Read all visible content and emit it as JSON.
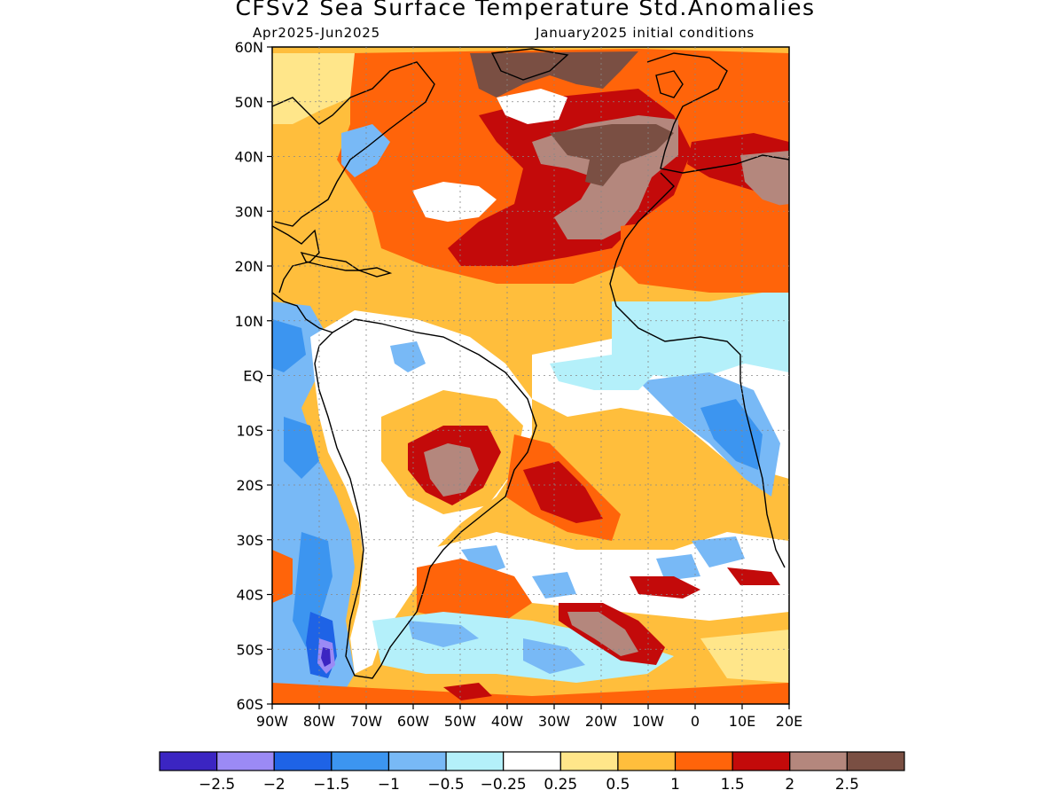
{
  "title": "CFSv2 Sea Surface Temperature Std.Anomalies",
  "subtitle_left": "Apr2025-Jun2025",
  "subtitle_right": "January2025 initial conditions",
  "map_extent": {
    "lon": [
      -90,
      20
    ],
    "lat": [
      -60,
      60
    ]
  },
  "lat_ticks": [
    {
      "value": 60,
      "label": "60N"
    },
    {
      "value": 50,
      "label": "50N"
    },
    {
      "value": 40,
      "label": "40N"
    },
    {
      "value": 30,
      "label": "30N"
    },
    {
      "value": 20,
      "label": "20N"
    },
    {
      "value": 10,
      "label": "10N"
    },
    {
      "value": 0,
      "label": "EQ"
    },
    {
      "value": -10,
      "label": "10S"
    },
    {
      "value": -20,
      "label": "20S"
    },
    {
      "value": -30,
      "label": "30S"
    },
    {
      "value": -40,
      "label": "40S"
    },
    {
      "value": -50,
      "label": "50S"
    },
    {
      "value": -60,
      "label": "60S"
    }
  ],
  "lon_ticks": [
    {
      "value": -90,
      "label": "90W"
    },
    {
      "value": -80,
      "label": "80W"
    },
    {
      "value": -70,
      "label": "70W"
    },
    {
      "value": -60,
      "label": "60W"
    },
    {
      "value": -50,
      "label": "50W"
    },
    {
      "value": -40,
      "label": "40W"
    },
    {
      "value": -30,
      "label": "30W"
    },
    {
      "value": -20,
      "label": "20W"
    },
    {
      "value": -10,
      "label": "10W"
    },
    {
      "value": 0,
      "label": "0"
    },
    {
      "value": 10,
      "label": "10E"
    },
    {
      "value": 20,
      "label": "20E"
    }
  ],
  "colorbar": {
    "colors": [
      "#3b25c2",
      "#9b8af5",
      "#1e63e6",
      "#3c95f0",
      "#78b9f6",
      "#b4f0fa",
      "#ffffff",
      "#ffe68a",
      "#ffbe3c",
      "#ff640a",
      "#c30a0a",
      "#b4877d",
      "#7a4f43"
    ],
    "labels": [
      "-2.5",
      "-2",
      "-1.5",
      "-1",
      "-0.5",
      "-0.25",
      "0.25",
      "0.5",
      "1",
      "1.5",
      "2",
      "2.5"
    ]
  }
}
